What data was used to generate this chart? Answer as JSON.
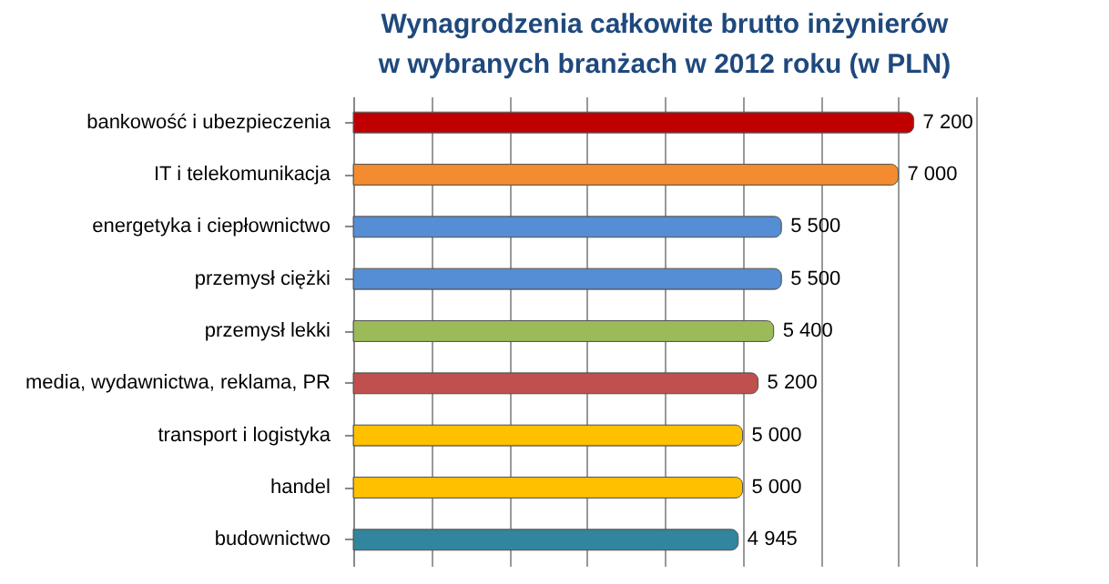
{
  "chart_data": {
    "type": "bar",
    "orientation": "horizontal",
    "title": "Wynagrodzenia całkowite brutto inżynierów\nw wybranych branżach  w 2012 roku (w PLN)",
    "categories": [
      "bankowość i ubezpieczenia",
      "IT i telekomunikacja",
      "energetyka i ciepłownictwo",
      "przemysł ciężki",
      "przemysł lekki",
      "media, wydawnictwa,  reklama, PR",
      "transport i logistyka",
      "handel",
      "budownictwo"
    ],
    "values": [
      7200,
      7000,
      5500,
      5500,
      5400,
      5200,
      5000,
      5000,
      4945
    ],
    "colors": [
      "#c00000",
      "#f38b30",
      "#558ed5",
      "#558ed5",
      "#9bbb59",
      "#c0504d",
      "#ffc000",
      "#ffc000",
      "#31859c"
    ],
    "value_labels": [
      "7 200",
      "7 000",
      "5 500",
      "5 500",
      "5 400",
      "5 200",
      "5 000",
      "5 000",
      "4 945"
    ],
    "xlim": [
      0,
      8000
    ],
    "xticks": [
      {
        "value": 0,
        "label": null
      },
      {
        "value": 1000,
        "label": null
      },
      {
        "value": 2000,
        "label": null
      },
      {
        "value": 3000,
        "label": null
      },
      {
        "value": 4000,
        "label": null
      },
      {
        "value": 5000,
        "label": null
      },
      {
        "value": 6000,
        "label": null
      },
      {
        "value": 7000,
        "label": null
      },
      {
        "value": 8000,
        "label": null
      }
    ],
    "grid": "x"
  }
}
